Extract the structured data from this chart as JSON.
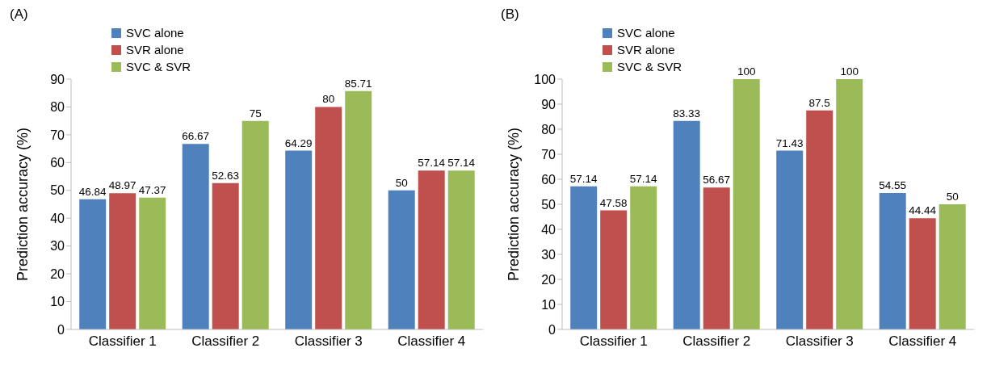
{
  "chart_data": [
    {
      "type": "bar",
      "title": "(A)",
      "ylabel": "Prediction accuracy (%)",
      "categories": [
        "Classifier 1",
        "Classifier 2",
        "Classifier 3",
        "Classifier 4"
      ],
      "series": [
        {
          "name": "SVC alone",
          "color": "#4f81bd",
          "values": [
            46.84,
            66.67,
            64.29,
            50
          ]
        },
        {
          "name": "SVR alone",
          "color": "#c0504d",
          "values": [
            48.97,
            52.63,
            80,
            57.14
          ]
        },
        {
          "name": "SVC & SVR",
          "color": "#9bbb59",
          "values": [
            47.37,
            75,
            85.71,
            57.14
          ]
        }
      ],
      "ylim": [
        0,
        90
      ],
      "yticks": [
        0,
        10,
        20,
        30,
        40,
        50,
        60,
        70,
        80,
        90
      ],
      "legend": "top left",
      "data_labels": true
    },
    {
      "type": "bar",
      "title": "(B)",
      "ylabel": "Prediction accuracy (%)",
      "categories": [
        "Classifier 1",
        "Classifier 2",
        "Classifier 3",
        "Classifier 4"
      ],
      "series": [
        {
          "name": "SVC alone",
          "color": "#4f81bd",
          "values": [
            57.14,
            83.33,
            71.43,
            54.55
          ]
        },
        {
          "name": "SVR alone",
          "color": "#c0504d",
          "values": [
            47.58,
            56.67,
            87.5,
            44.44
          ]
        },
        {
          "name": "SVC & SVR",
          "color": "#9bbb59",
          "values": [
            57.14,
            100,
            100,
            50
          ]
        }
      ],
      "ylim": [
        0,
        100
      ],
      "yticks": [
        0,
        10,
        20,
        30,
        40,
        50,
        60,
        70,
        80,
        90,
        100
      ],
      "legend": "top left",
      "data_labels": true
    }
  ]
}
